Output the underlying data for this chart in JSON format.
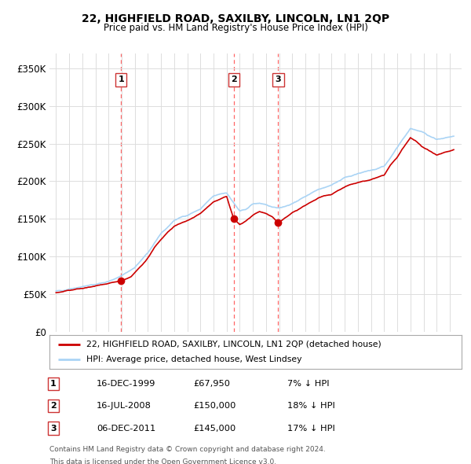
{
  "title": "22, HIGHFIELD ROAD, SAXILBY, LINCOLN, LN1 2QP",
  "subtitle": "Price paid vs. HM Land Registry's House Price Index (HPI)",
  "legend_line1": "22, HIGHFIELD ROAD, SAXILBY, LINCOLN, LN1 2QP (detached house)",
  "legend_line2": "HPI: Average price, detached house, West Lindsey",
  "footer1": "Contains HM Land Registry data © Crown copyright and database right 2024.",
  "footer2": "This data is licensed under the Open Government Licence v3.0.",
  "transactions": [
    {
      "num": 1,
      "date": "16-DEC-1999",
      "price": "£67,950",
      "pct": "7% ↓ HPI",
      "x": 1999.96
    },
    {
      "num": 2,
      "date": "16-JUL-2008",
      "price": "£150,000",
      "pct": "18% ↓ HPI",
      "x": 2008.54
    },
    {
      "num": 3,
      "date": "06-DEC-2011",
      "price": "£145,000",
      "pct": "17% ↓ HPI",
      "x": 2011.93
    }
  ],
  "transaction_prices": [
    67950,
    150000,
    145000
  ],
  "ylim": [
    0,
    370000
  ],
  "yticks": [
    0,
    50000,
    100000,
    150000,
    200000,
    250000,
    300000,
    350000
  ],
  "ytick_labels": [
    "£0",
    "£50K",
    "£100K",
    "£150K",
    "£200K",
    "£250K",
    "£300K",
    "£350K"
  ],
  "hpi_color": "#aad4f5",
  "sale_color": "#cc0000",
  "vline_color": "#ff6666",
  "grid_color": "#dddddd",
  "bg_color": "#ffffff",
  "hpi_linewidth": 1.2,
  "sale_linewidth": 1.2,
  "hpi_anchors_x": [
    1995.0,
    1995.5,
    1996.0,
    1996.5,
    1997.0,
    1997.5,
    1998.0,
    1998.5,
    1999.0,
    1999.5,
    2000.0,
    2000.5,
    2001.0,
    2001.5,
    2002.0,
    2002.5,
    2003.0,
    2003.5,
    2004.0,
    2004.5,
    2005.0,
    2005.5,
    2006.0,
    2006.5,
    2007.0,
    2007.5,
    2008.0,
    2008.5,
    2009.0,
    2009.5,
    2010.0,
    2010.5,
    2011.0,
    2011.5,
    2012.0,
    2012.5,
    2013.0,
    2013.5,
    2014.0,
    2014.5,
    2015.0,
    2015.5,
    2016.0,
    2016.5,
    2017.0,
    2017.5,
    2018.0,
    2018.5,
    2019.0,
    2019.5,
    2020.0,
    2020.5,
    2021.0,
    2021.5,
    2022.0,
    2022.5,
    2023.0,
    2023.5,
    2024.0,
    2024.5,
    2025.3
  ],
  "hpi_anchors_y": [
    54000,
    55000,
    57000,
    58500,
    60000,
    61500,
    63000,
    65000,
    67000,
    70000,
    75000,
    80000,
    85000,
    95000,
    105000,
    118000,
    130000,
    139000,
    148000,
    152000,
    155000,
    159000,
    163000,
    172000,
    180000,
    183000,
    185000,
    172000,
    160000,
    163000,
    170000,
    171000,
    168000,
    166000,
    165000,
    167000,
    170000,
    175000,
    180000,
    185000,
    190000,
    192000,
    195000,
    200000,
    205000,
    207000,
    210000,
    212000,
    215000,
    217000,
    220000,
    232000,
    245000,
    258000,
    270000,
    268000,
    265000,
    260000,
    255000,
    257000,
    260000
  ],
  "sale_anchors_x": [
    1995.0,
    1995.5,
    1996.0,
    1996.5,
    1997.0,
    1997.5,
    1998.0,
    1998.5,
    1999.0,
    1999.5,
    1999.96,
    2000.3,
    2000.7,
    2001.0,
    2001.5,
    2002.0,
    2002.5,
    2003.0,
    2003.5,
    2004.0,
    2004.5,
    2005.0,
    2005.5,
    2006.0,
    2006.5,
    2007.0,
    2007.5,
    2008.0,
    2008.54,
    2009.0,
    2009.5,
    2010.0,
    2010.5,
    2011.0,
    2011.5,
    2011.93,
    2012.2,
    2012.5,
    2013.0,
    2013.5,
    2014.0,
    2014.5,
    2015.0,
    2015.5,
    2016.0,
    2016.5,
    2017.0,
    2017.5,
    2018.0,
    2018.5,
    2019.0,
    2019.5,
    2020.0,
    2020.5,
    2021.0,
    2021.5,
    2022.0,
    2022.5,
    2023.0,
    2023.5,
    2024.0,
    2024.5,
    2025.3
  ],
  "sale_anchors_y": [
    52000,
    53000,
    55000,
    56500,
    57500,
    59000,
    60500,
    62000,
    64000,
    66000,
    67950,
    70000,
    73000,
    78000,
    88000,
    98000,
    112000,
    122000,
    132000,
    140000,
    144000,
    148000,
    152000,
    157000,
    165000,
    172000,
    176000,
    180000,
    150000,
    142000,
    148000,
    155000,
    160000,
    157000,
    152000,
    145000,
    148000,
    152000,
    158000,
    163000,
    168000,
    173000,
    178000,
    181000,
    183000,
    188000,
    192000,
    196000,
    198000,
    200000,
    202000,
    205000,
    208000,
    222000,
    232000,
    245000,
    258000,
    252000,
    245000,
    240000,
    235000,
    238000,
    242000
  ]
}
